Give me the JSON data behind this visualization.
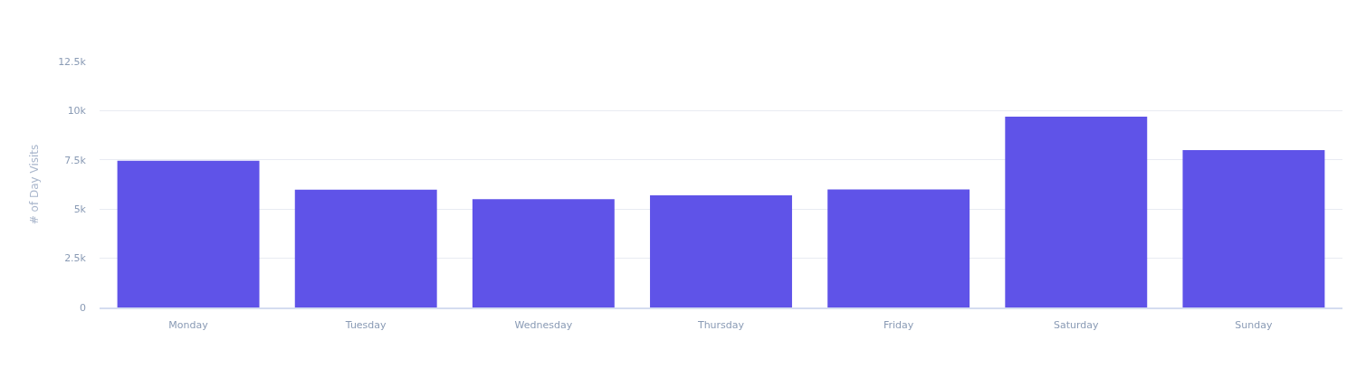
{
  "chart_data": {
    "type": "bar",
    "ylabel": "# of Day Visits",
    "categories": [
      "Monday",
      "Tuesday",
      "Wednesday",
      "Thursday",
      "Friday",
      "Saturday",
      "Sunday"
    ],
    "values": [
      7460,
      5990,
      5500,
      5700,
      6000,
      9700,
      8000
    ],
    "color": "#5f53e8",
    "ylim": [
      0,
      12500
    ],
    "yticks": [
      0,
      {
        "value": 2500,
        "label": "2.5k"
      },
      {
        "value": 5000,
        "label": "5k"
      },
      {
        "value": 7500,
        "label": "7.5k"
      },
      {
        "value": 10000,
        "label": "10k"
      },
      {
        "value": 12500,
        "label": "12.5k"
      }
    ],
    "grid": "y",
    "legend": false
  }
}
